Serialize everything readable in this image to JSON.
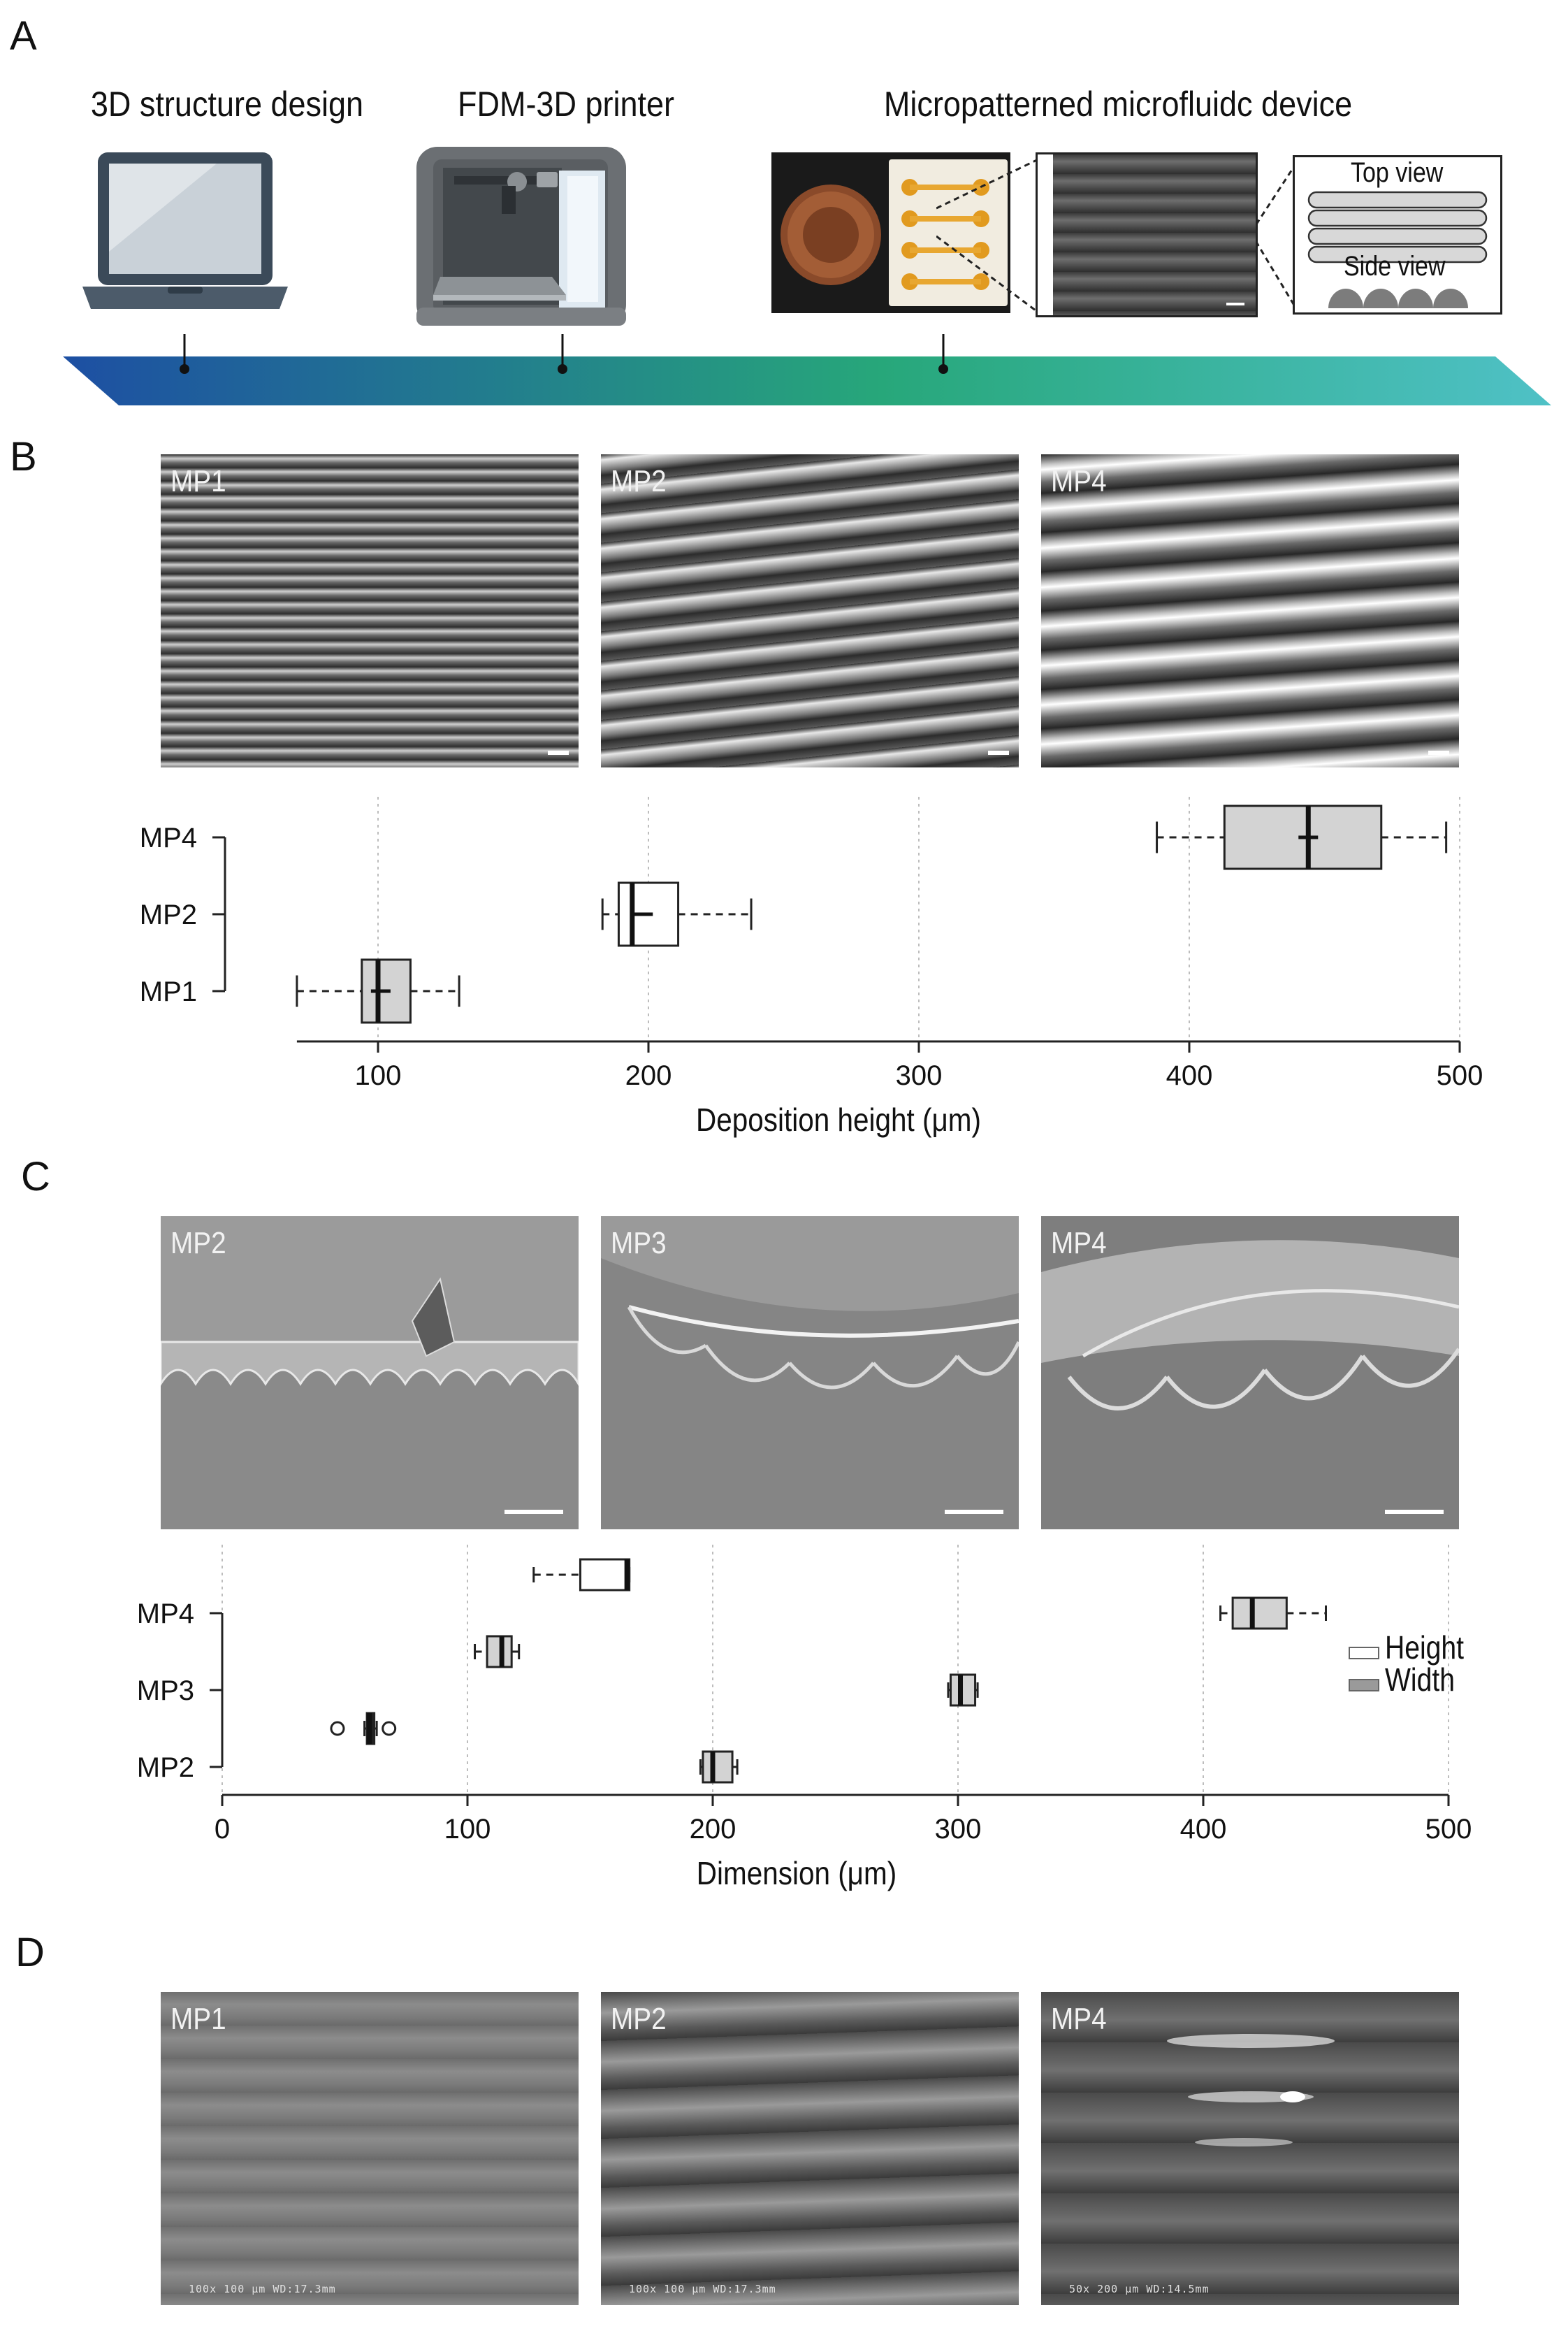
{
  "panels": {
    "A": {
      "letter": "A",
      "captions": [
        "3D structure design",
        "FDM-3D printer",
        "Micropatterned microfluidc device"
      ],
      "inset_top": "Top view",
      "inset_side": "Side view",
      "colors": {
        "band_start": "#1d4fa3",
        "band_mid": "#27a77a",
        "band_end": "#4fc1c6"
      }
    },
    "B": {
      "letter": "B",
      "images": [
        {
          "label": "MP1"
        },
        {
          "label": "MP2"
        },
        {
          "label": "MP4"
        }
      ]
    },
    "C": {
      "letter": "C",
      "images": [
        {
          "label": "MP2"
        },
        {
          "label": "MP3"
        },
        {
          "label": "MP4"
        }
      ],
      "legend": [
        {
          "label": "Height",
          "color": "#ffffff"
        },
        {
          "label": "Width",
          "color": "#9a9a9a"
        }
      ]
    },
    "D": {
      "letter": "D",
      "images": [
        {
          "label": "MP1",
          "sem": "100x   100 μm  WD:17.3mm"
        },
        {
          "label": "MP2",
          "sem": "100x   100 μm  WD:17.3mm"
        },
        {
          "label": "MP4",
          "sem": "50x   200 μm  WD:14.5mm"
        }
      ]
    }
  },
  "chart_data": [
    {
      "type": "box",
      "id": "B",
      "xlabel": "Deposition height (μm)",
      "xlim": [
        70,
        500
      ],
      "xticks": [
        100,
        200,
        300,
        400,
        500
      ],
      "grid": "vertical-dotted",
      "categories": [
        "MP4",
        "MP2",
        "MP1"
      ],
      "series": [
        {
          "category": "MP4",
          "min": 388,
          "q1": 413,
          "median": 444,
          "q3": 471,
          "max": 495,
          "mean": 444,
          "fill": "#d3d3d3"
        },
        {
          "category": "MP2",
          "min": 183,
          "q1": 189,
          "median": 194,
          "q3": 211,
          "max": 238,
          "mean": 198,
          "fill": "#ffffff"
        },
        {
          "category": "MP1",
          "min": 70,
          "q1": 94,
          "median": 100,
          "q3": 112,
          "max": 130,
          "mean": 101,
          "fill": "#d3d3d3"
        }
      ]
    },
    {
      "type": "box",
      "id": "C",
      "xlabel": "Dimension (μm)",
      "xlim": [
        0,
        500
      ],
      "xticks": [
        0,
        100,
        200,
        300,
        400,
        500
      ],
      "grid": "vertical-dotted",
      "categories": [
        "MP4",
        "MP3",
        "MP2"
      ],
      "series": [
        {
          "category": "MP4",
          "name": "Height",
          "min": 127,
          "q1": 146,
          "median": 165,
          "q3": 166,
          "max": 166,
          "fill": "#ffffff",
          "row_offset": -0.5
        },
        {
          "category": "MP4",
          "name": "Width",
          "min": 407,
          "q1": 412,
          "median": 420,
          "q3": 434,
          "max": 450,
          "fill": "#d3d3d3",
          "row_offset": 0
        },
        {
          "category": "MP3",
          "name": "Height",
          "min": 103,
          "q1": 108,
          "median": 114,
          "q3": 118,
          "max": 121,
          "fill": "#d3d3d3",
          "row_offset": -0.5
        },
        {
          "category": "MP3",
          "name": "Width",
          "min": 296,
          "q1": 297,
          "median": 301,
          "q3": 307,
          "max": 308,
          "fill": "#d3d3d3",
          "row_offset": 0
        },
        {
          "category": "MP2",
          "name": "Height",
          "min": 58,
          "q1": 59,
          "median": 60,
          "q3": 62,
          "max": 63,
          "fill": "#222222",
          "row_offset": -0.5,
          "outliers": [
            47,
            68
          ]
        },
        {
          "category": "MP2",
          "name": "Width",
          "min": 195,
          "q1": 196,
          "median": 200,
          "q3": 208,
          "max": 210,
          "fill": "#d3d3d3",
          "row_offset": 0
        }
      ]
    }
  ]
}
